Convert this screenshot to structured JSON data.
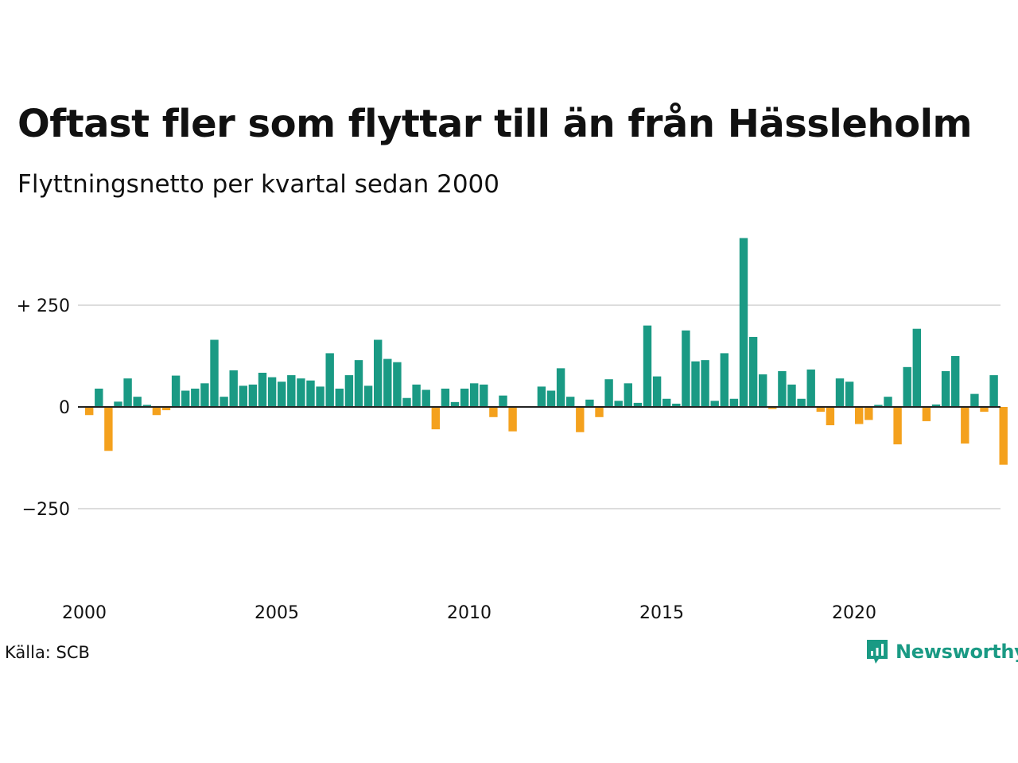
{
  "header": {
    "title": "Oftast fler som flyttar till än från Hässleholm",
    "subtitle": "Flyttningsnetto per kvartal sedan 2000"
  },
  "footer": {
    "source": "Källa: SCB",
    "brand": "Newsworthy",
    "brand_icon": "newsworthy-logo-icon"
  },
  "colors": {
    "positive": "#1a9a84",
    "negative": "#f4a11d",
    "gridline": "#dddddd",
    "zero_line": "#222222",
    "text": "#111111"
  },
  "chart_data": {
    "type": "bar",
    "title": "Oftast fler som flyttar till än från Hässleholm",
    "subtitle": "Flyttningsnetto per kvartal sedan 2000",
    "xlabel": "",
    "ylabel": "",
    "ylim": [
      -370,
      420
    ],
    "yticks": [
      250,
      0,
      -250
    ],
    "ytick_labels": [
      "+ 250",
      "0",
      "−250"
    ],
    "xticks": [
      2000,
      2005,
      2010,
      2015,
      2020
    ],
    "xtick_labels": [
      "2000",
      "2005",
      "2010",
      "2015",
      "2020"
    ],
    "x_start_year": 2000,
    "x_end_year": 2024,
    "grid": true,
    "legend": "none",
    "values": [
      -20,
      45,
      -108,
      13,
      70,
      25,
      5,
      -20,
      -8,
      77,
      40,
      45,
      58,
      165,
      25,
      90,
      52,
      55,
      84,
      73,
      62,
      78,
      70,
      65,
      50,
      132,
      45,
      78,
      115,
      52,
      165,
      118,
      110,
      22,
      55,
      42,
      -55,
      45,
      12,
      45,
      58,
      55,
      -25,
      28,
      -60,
      0,
      0,
      50,
      40,
      95,
      25,
      -62,
      18,
      -25,
      68,
      15,
      58,
      10,
      200,
      75,
      20,
      8,
      188,
      112,
      115,
      15,
      132,
      20,
      415,
      172,
      80,
      -5,
      88,
      55,
      20,
      92,
      -12,
      -45,
      70,
      62,
      -42,
      -32,
      5,
      25,
      -92,
      98,
      192,
      -35,
      6,
      88,
      125,
      -90,
      32,
      -12,
      78,
      -142
    ]
  }
}
